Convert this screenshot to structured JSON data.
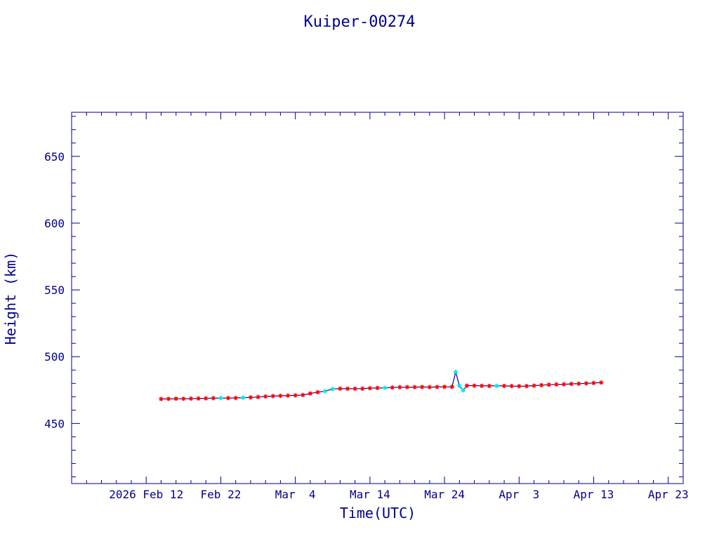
{
  "chart_data": {
    "type": "line",
    "title": "Kuiper-00274",
    "xlabel": "Time(UTC)",
    "ylabel": "Height (km)",
    "xlim": [
      "2026-02-02",
      "2026-04-25"
    ],
    "ylim": [
      405,
      683
    ],
    "x_ticks": [
      {
        "date": "2026-02-12",
        "label": "2026 Feb 12"
      },
      {
        "date": "2026-02-22",
        "label": "Feb 22"
      },
      {
        "date": "2026-03-04",
        "label": "Mar  4"
      },
      {
        "date": "2026-03-14",
        "label": "Mar 14"
      },
      {
        "date": "2026-03-24",
        "label": "Mar 24"
      },
      {
        "date": "2026-04-03",
        "label": "Apr  3"
      },
      {
        "date": "2026-04-13",
        "label": "Apr 13"
      },
      {
        "date": "2026-04-23",
        "label": "Apr 23"
      }
    ],
    "y_ticks": [
      450,
      500,
      550,
      600,
      650
    ],
    "grid": false,
    "colors": {
      "axes": "#00008b",
      "line": "#00008b",
      "marker_main": "#ff0000",
      "marker_alt": "#00e5ee"
    },
    "series": [
      {
        "marker": "star",
        "points": [
          {
            "date": "2026-02-14",
            "y": 468.3
          },
          {
            "date": "2026-02-15",
            "y": 468.4
          },
          {
            "date": "2026-02-16",
            "y": 468.5
          },
          {
            "date": "2026-02-17",
            "y": 468.5
          },
          {
            "date": "2026-02-18",
            "y": 468.6
          },
          {
            "date": "2026-02-19",
            "y": 468.7
          },
          {
            "date": "2026-02-20",
            "y": 468.8
          },
          {
            "date": "2026-02-21",
            "y": 468.9
          },
          {
            "date": "2026-02-22",
            "y": 469.0,
            "alt": true
          },
          {
            "date": "2026-02-23",
            "y": 469.0
          },
          {
            "date": "2026-02-24",
            "y": 469.1
          },
          {
            "date": "2026-02-25",
            "y": 469.3,
            "alt": true
          },
          {
            "date": "2026-02-26",
            "y": 469.5
          },
          {
            "date": "2026-02-27",
            "y": 469.8
          },
          {
            "date": "2026-02-28",
            "y": 470.2
          },
          {
            "date": "2026-03-01",
            "y": 470.5
          },
          {
            "date": "2026-03-02",
            "y": 470.7
          },
          {
            "date": "2026-03-03",
            "y": 470.9
          },
          {
            "date": "2026-03-04",
            "y": 471.0
          },
          {
            "date": "2026-03-05",
            "y": 471.3
          },
          {
            "date": "2026-03-06",
            "y": 472.4
          },
          {
            "date": "2026-03-07",
            "y": 473.4
          },
          {
            "date": "2026-03-08",
            "y": 474.2,
            "alt": true
          },
          {
            "date": "2026-03-09",
            "y": 475.8,
            "alt": true
          },
          {
            "date": "2026-03-10",
            "y": 476.1
          },
          {
            "date": "2026-03-11",
            "y": 476.0
          },
          {
            "date": "2026-03-12",
            "y": 476.0
          },
          {
            "date": "2026-03-13",
            "y": 476.1
          },
          {
            "date": "2026-03-14",
            "y": 476.4
          },
          {
            "date": "2026-03-15",
            "y": 476.6
          },
          {
            "date": "2026-03-16",
            "y": 476.7,
            "alt": true
          },
          {
            "date": "2026-03-17",
            "y": 476.9
          },
          {
            "date": "2026-03-18",
            "y": 477.1
          },
          {
            "date": "2026-03-19",
            "y": 477.2
          },
          {
            "date": "2026-03-20",
            "y": 477.2
          },
          {
            "date": "2026-03-21",
            "y": 477.3
          },
          {
            "date": "2026-03-22",
            "y": 477.2
          },
          {
            "date": "2026-03-23",
            "y": 477.3
          },
          {
            "date": "2026-03-24",
            "y": 477.4
          },
          {
            "date": "2026-03-25",
            "y": 477.4
          },
          {
            "date": "2026-03-25T12:00",
            "y": 488.5,
            "alt": true
          },
          {
            "date": "2026-03-26",
            "y": 478.2,
            "alt": true
          },
          {
            "date": "2026-03-26T12:00",
            "y": 474.8,
            "alt": true
          },
          {
            "date": "2026-03-27",
            "y": 478.3
          },
          {
            "date": "2026-03-28",
            "y": 478.3
          },
          {
            "date": "2026-03-29",
            "y": 478.2
          },
          {
            "date": "2026-03-30",
            "y": 478.1
          },
          {
            "date": "2026-03-31",
            "y": 478.2,
            "alt": true
          },
          {
            "date": "2026-04-01",
            "y": 478.1
          },
          {
            "date": "2026-04-02",
            "y": 478.0
          },
          {
            "date": "2026-04-03",
            "y": 477.9
          },
          {
            "date": "2026-04-04",
            "y": 478.0
          },
          {
            "date": "2026-04-05",
            "y": 478.3
          },
          {
            "date": "2026-04-06",
            "y": 478.7
          },
          {
            "date": "2026-04-07",
            "y": 479.0
          },
          {
            "date": "2026-04-08",
            "y": 479.2
          },
          {
            "date": "2026-04-09",
            "y": 479.3
          },
          {
            "date": "2026-04-10",
            "y": 479.6
          },
          {
            "date": "2026-04-11",
            "y": 479.8
          },
          {
            "date": "2026-04-12",
            "y": 480.0
          },
          {
            "date": "2026-04-13",
            "y": 480.3
          },
          {
            "date": "2026-04-14",
            "y": 480.6
          }
        ]
      }
    ]
  }
}
